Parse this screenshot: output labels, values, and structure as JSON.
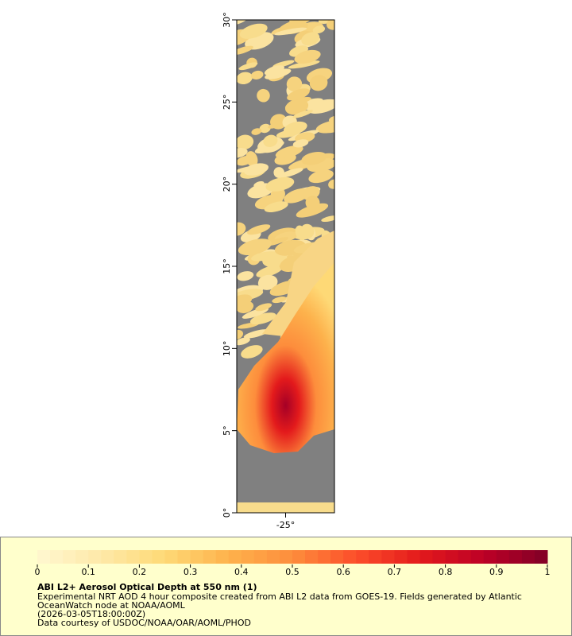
{
  "map": {
    "xlim": [
      -28,
      -22
    ],
    "ylim": [
      0,
      30
    ],
    "xticks": [
      {
        "value": -25,
        "label": "-25°"
      }
    ],
    "yticks": [
      {
        "value": 0,
        "label": "0°"
      },
      {
        "value": 5,
        "label": "5°"
      },
      {
        "value": 10,
        "label": "10°"
      },
      {
        "value": 15,
        "label": "15°"
      },
      {
        "value": 20,
        "label": "20°"
      },
      {
        "value": 25,
        "label": "25°"
      },
      {
        "value": 30,
        "label": "30°"
      }
    ]
  },
  "legend": {
    "range": [
      0,
      1
    ],
    "ticks": [
      0,
      0.1,
      0.2,
      0.3,
      0.4,
      0.5,
      0.6,
      0.7,
      0.8,
      0.9,
      1
    ],
    "colors": [
      "#fff7d0",
      "#fee9a8",
      "#fed976",
      "#feb24c",
      "#fd8d3c",
      "#fc4e2a",
      "#e31a1c",
      "#bd0026",
      "#800026"
    ],
    "title": "ABI L2+ Aerosol Optical Depth at 550 nm (1)",
    "lines": [
      "Experimental NRT AOD 4 hour composite created from ABI L2 data from GOES-19. Fields generated by Atlantic",
      "OceanWatch node at NOAA/AOML",
      "(2026-03-05T18:00:00Z)",
      "Data courtesy of USDOC/NOAA/OAR/AOML/PHOD"
    ]
  }
}
